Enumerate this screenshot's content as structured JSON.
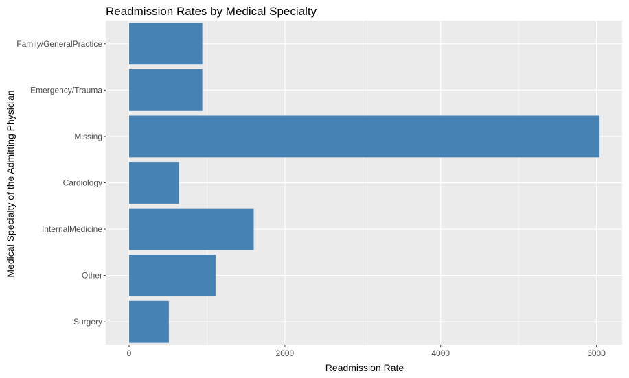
{
  "chart_data": {
    "type": "bar",
    "orientation": "horizontal",
    "title": "Readmission Rates by Medical Specialty",
    "xlabel": "Readmission Rate",
    "ylabel": "Medical Specialty of the Admitting Physician",
    "categories": [
      "Family/GeneralPractice",
      "Emergency/Trauma",
      "Missing",
      "Cardiology",
      "InternalMedicine",
      "Other",
      "Surgery"
    ],
    "values": [
      940,
      940,
      6040,
      640,
      1600,
      1110,
      510
    ],
    "xlim": [
      -300,
      6330
    ],
    "x_ticks": [
      0,
      2000,
      4000,
      6000
    ],
    "x_tick_labels": [
      "0",
      "2000",
      "4000",
      "6000"
    ],
    "grid": true,
    "legend": "none",
    "bar_color": "#4682B4",
    "panel_color": "#EBEBEB",
    "grid_color": "#FFFFFF"
  }
}
